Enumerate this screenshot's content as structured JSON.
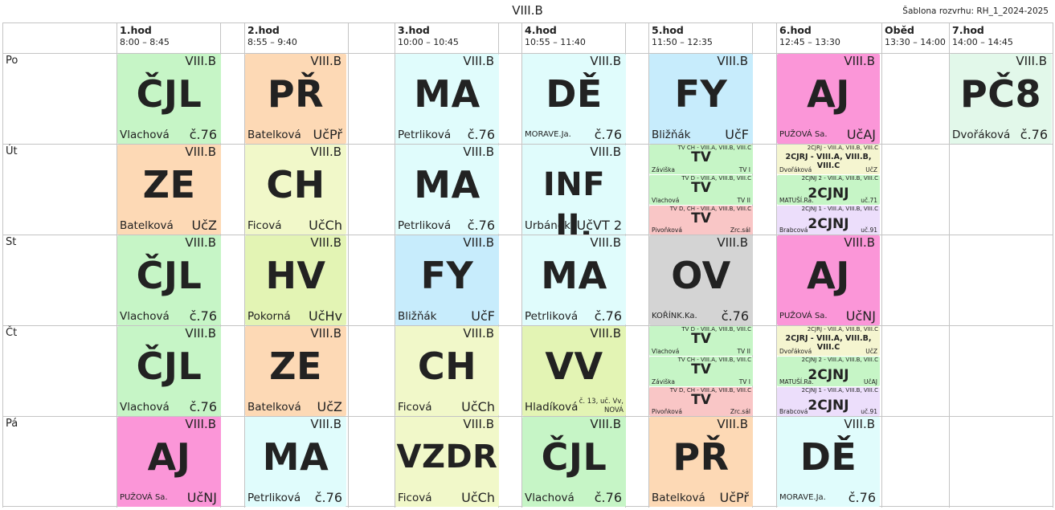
{
  "header": {
    "title": "VIII.B",
    "template": "Šablona rozvrhu: RH_1_2024-2025"
  },
  "periods": [
    {
      "num": "1.hod",
      "time": "8:00 – 8:45"
    },
    {
      "num": "2.hod",
      "time": "8:55 – 9:40"
    },
    {
      "num": "3.hod",
      "time": "10:00 – 10:45"
    },
    {
      "num": "4.hod",
      "time": "10:55 – 11:40"
    },
    {
      "num": "5.hod",
      "time": "11:50 – 12:35"
    },
    {
      "num": "6.hod",
      "time": "12:45 – 13:30"
    },
    {
      "num": "Oběd",
      "time": "13:30 – 14:00"
    },
    {
      "num": "7.hod",
      "time": "14:00 – 14:45"
    }
  ],
  "days": [
    "Po",
    "Út",
    "St",
    "Čt",
    "Pá"
  ],
  "colors": {
    "green": "#c6f5c6",
    "orange": "#fdd9b5",
    "cyan": "#e0fcfc",
    "blue": "#c7ecfc",
    "pink": "#fb96d8",
    "lime": "#f1f8c9",
    "yellowgreen": "#e3f4b4",
    "grey": "#d4d4d4",
    "mintgreen": "#e2f8ea",
    "palegreen": "#c6f5c6",
    "rose": "#f9c6c6",
    "lavender": "#ecdefb",
    "lightyellow": "#f5f5d0"
  },
  "lessons": [
    {
      "day": 0,
      "col": 0,
      "cls": "VIII.B",
      "subject": "ČJL",
      "teacher": "Vlachová",
      "room": "č.76",
      "color": "green"
    },
    {
      "day": 0,
      "col": 1,
      "cls": "VIII.B",
      "subject": "PŘ",
      "teacher": "Batelková",
      "room": "UčPř",
      "color": "orange"
    },
    {
      "day": 0,
      "col": 2,
      "cls": "VIII.B",
      "subject": "MA",
      "teacher": "Petrliková",
      "room": "č.76",
      "color": "cyan"
    },
    {
      "day": 0,
      "col": 3,
      "cls": "VIII.B",
      "subject": "DĚ",
      "teacher": "MORAVE.Ja.",
      "room": "č.76",
      "color": "cyan",
      "tsmall": true
    },
    {
      "day": 0,
      "col": 4,
      "cls": "VIII.B",
      "subject": "FY",
      "teacher": "Bližňák",
      "room": "UčF",
      "color": "blue"
    },
    {
      "day": 0,
      "col": 5,
      "cls": "VIII.B",
      "subject": "AJ",
      "teacher": "PUŽOVÁ Sa.",
      "room": "UčAJ",
      "color": "pink",
      "tsmall": true
    },
    {
      "day": 0,
      "col": 7,
      "cls": "VIII.B",
      "subject": "PČ8",
      "teacher": "Dvořáková",
      "room": "č.76",
      "color": "mintgreen"
    },
    {
      "day": 1,
      "col": 0,
      "cls": "VIII.B",
      "subject": "ZE",
      "teacher": "Batelková",
      "room": "UčZ",
      "color": "orange"
    },
    {
      "day": 1,
      "col": 1,
      "cls": "VIII.B",
      "subject": "CH",
      "teacher": "Ficová",
      "room": "UčCh",
      "color": "lime"
    },
    {
      "day": 1,
      "col": 2,
      "cls": "VIII.B",
      "subject": "MA",
      "teacher": "Petrliková",
      "room": "č.76",
      "color": "cyan"
    },
    {
      "day": 1,
      "col": 3,
      "cls": "VIII.B",
      "subject": "INF II.",
      "teacher": "Urbánek",
      "room": "UčVT 2",
      "color": "cyan",
      "mid": true
    },
    {
      "day": 2,
      "col": 0,
      "cls": "VIII.B",
      "subject": "ČJL",
      "teacher": "Vlachová",
      "room": "č.76",
      "color": "green"
    },
    {
      "day": 2,
      "col": 1,
      "cls": "VIII.B",
      "subject": "HV",
      "teacher": "Pokorná",
      "room": "UčHv",
      "color": "yellowgreen"
    },
    {
      "day": 2,
      "col": 2,
      "cls": "VIII.B",
      "subject": "FY",
      "teacher": "Bližňák",
      "room": "UčF",
      "color": "blue"
    },
    {
      "day": 2,
      "col": 3,
      "cls": "VIII.B",
      "subject": "MA",
      "teacher": "Petrliková",
      "room": "č.76",
      "color": "cyan"
    },
    {
      "day": 2,
      "col": 4,
      "cls": "VIII.B",
      "subject": "OV",
      "teacher": "KOŘÍNK.Ka.",
      "room": "č.76",
      "color": "grey",
      "tsmall": true
    },
    {
      "day": 2,
      "col": 5,
      "cls": "VIII.B",
      "subject": "AJ",
      "teacher": "PUŽOVÁ Sa.",
      "room": "UčNJ",
      "color": "pink",
      "tsmall": true
    },
    {
      "day": 3,
      "col": 0,
      "cls": "VIII.B",
      "subject": "ČJL",
      "teacher": "Vlachová",
      "room": "č.76",
      "color": "green"
    },
    {
      "day": 3,
      "col": 1,
      "cls": "VIII.B",
      "subject": "ZE",
      "teacher": "Batelková",
      "room": "UčZ",
      "color": "orange"
    },
    {
      "day": 3,
      "col": 2,
      "cls": "VIII.B",
      "subject": "CH",
      "teacher": "Ficová",
      "room": "UčCh",
      "color": "lime"
    },
    {
      "day": 3,
      "col": 3,
      "cls": "VIII.B",
      "subject": "VV",
      "teacher": "Hladíková",
      "room": "č. 13, uč. Vv, NOVÁ",
      "color": "yellowgreen",
      "rsmall": true
    },
    {
      "day": 4,
      "col": 0,
      "cls": "VIII.B",
      "subject": "AJ",
      "teacher": "PUŽOVÁ Sa.",
      "room": "UčNJ",
      "color": "pink",
      "tsmall": true
    },
    {
      "day": 4,
      "col": 1,
      "cls": "VIII.B",
      "subject": "MA",
      "teacher": "Petrliková",
      "room": "č.76",
      "color": "cyan"
    },
    {
      "day": 4,
      "col": 2,
      "cls": "VIII.B",
      "subject": "VZDR",
      "teacher": "Ficová",
      "room": "UčCh",
      "color": "lime",
      "mid": true
    },
    {
      "day": 4,
      "col": 3,
      "cls": "VIII.B",
      "subject": "ČJL",
      "teacher": "Vlachová",
      "room": "č.76",
      "color": "green"
    },
    {
      "day": 4,
      "col": 4,
      "cls": "VIII.B",
      "subject": "PŘ",
      "teacher": "Batelková",
      "room": "UčPř",
      "color": "orange"
    },
    {
      "day": 4,
      "col": 5,
      "cls": "VIII.B",
      "subject": "DĚ",
      "teacher": "MORAVE.Ja.",
      "room": "č.76",
      "color": "cyan",
      "tsmall": true
    }
  ],
  "split_lessons": [
    {
      "day": 1,
      "col": 4,
      "parts": [
        {
          "group": "TV CH - VIII.A, VIII.B, VIII.C",
          "subject": "TV",
          "teacher": "Záviška",
          "room": "TV I",
          "color": "palegreen"
        },
        {
          "group": "TV D - VIII.A, VIII.B, VIII.C",
          "subject": "TV",
          "teacher": "Vlachová",
          "room": "TV II",
          "color": "palegreen"
        },
        {
          "group": "TV D, CH - VIII.A, VIII.B, VIII.C",
          "subject": "TV",
          "teacher": "Pivoňková",
          "room": "Zrc.sál",
          "color": "rose"
        }
      ]
    },
    {
      "day": 1,
      "col": 5,
      "parts": [
        {
          "group": "2CJRJ - VIII.A, VIII.B, VIII.C",
          "bold": "2CJRJ - VIII.A, VIII.B, VIII.C",
          "teacher": "Dvořáková",
          "room": "UčZ",
          "color": "lightyellow"
        },
        {
          "group": "2CJNJ 2 - VIII.A, VIII.B, VIII.C",
          "subject": "2CJNJ",
          "teacher": "MATUŠÍ.Ra.",
          "room": "uč.71",
          "color": "palegreen"
        },
        {
          "group": "2CJNJ 1 - VIII.A, VIII.B, VIII.C",
          "subject": "2CJNJ",
          "teacher": "Brabcová",
          "room": "uč.91",
          "color": "lavender"
        }
      ]
    },
    {
      "day": 3,
      "col": 4,
      "parts": [
        {
          "group": "TV D - VIII.A, VIII.B, VIII.C",
          "subject": "TV",
          "teacher": "Vlachová",
          "room": "TV II",
          "color": "palegreen"
        },
        {
          "group": "TV CH - VIII.A, VIII.B, VIII.C",
          "subject": "TV",
          "teacher": "Záviška",
          "room": "TV I",
          "color": "palegreen"
        },
        {
          "group": "TV D, CH - VIII.A, VIII.B, VIII.C",
          "subject": "TV",
          "teacher": "Pivoňková",
          "room": "Zrc.sál",
          "color": "rose"
        }
      ]
    },
    {
      "day": 3,
      "col": 5,
      "parts": [
        {
          "group": "2CJRJ - VIII.A, VIII.B, VIII.C",
          "bold": "2CJRJ - VIII.A, VIII.B, VIII.C",
          "teacher": "Dvořáková",
          "room": "UčZ",
          "color": "lightyellow"
        },
        {
          "group": "2CJNJ 2 - VIII.A, VIII.B, VIII.C",
          "subject": "2CJNJ",
          "teacher": "MATUŠÍ.Ra.",
          "room": "UčAJ",
          "color": "palegreen"
        },
        {
          "group": "2CJNJ 1 - VIII.A, VIII.B, VIII.C",
          "subject": "2CJNJ",
          "teacher": "Brabcová",
          "room": "uč.91",
          "color": "lavender"
        }
      ]
    }
  ]
}
